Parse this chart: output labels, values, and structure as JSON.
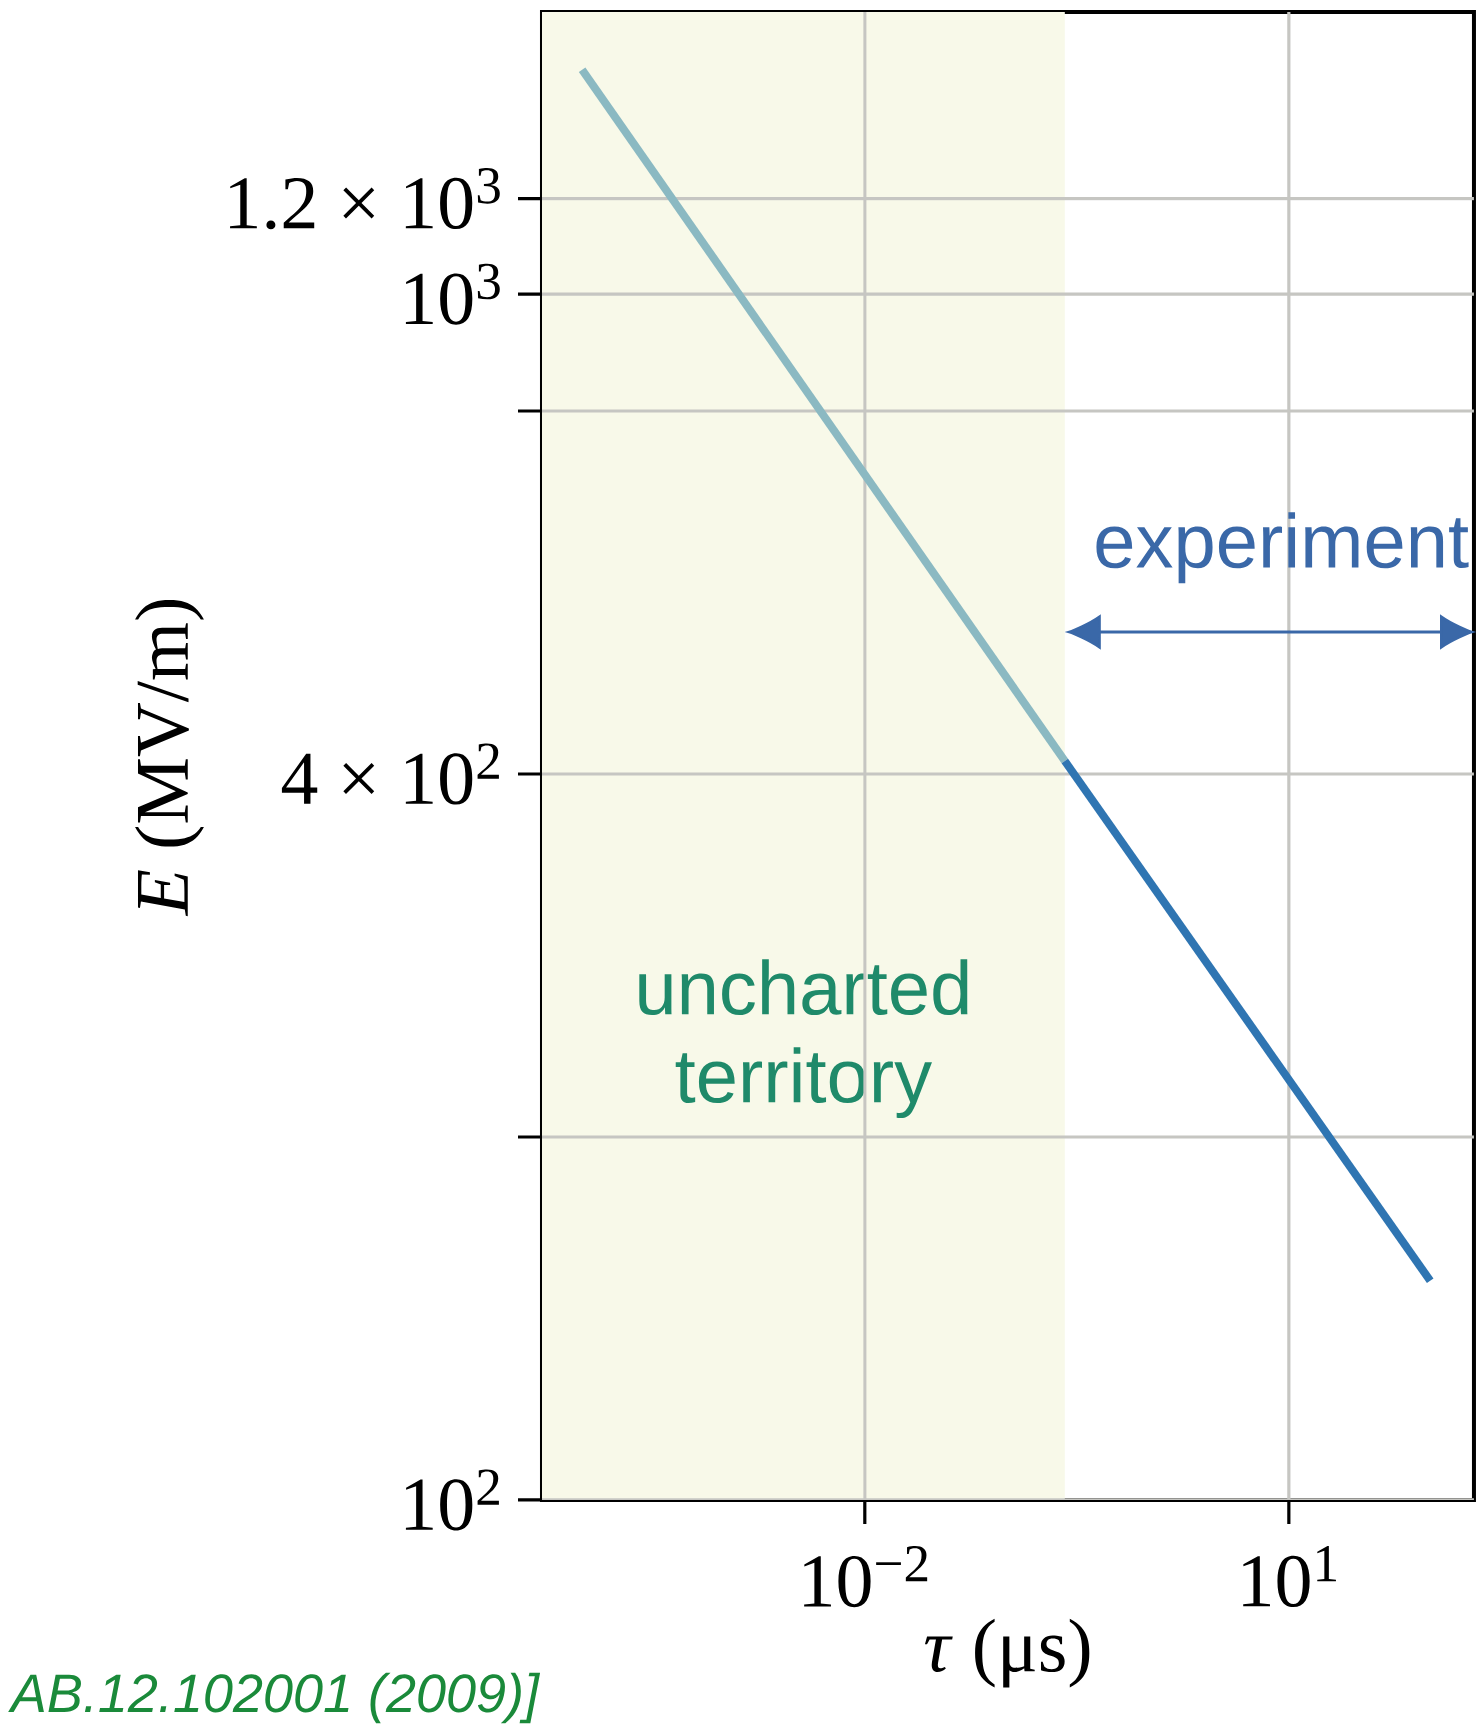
{
  "chart_data": {
    "type": "line",
    "xlabel": "*τ* (μs)",
    "ylabel": "*E* (MV/m)",
    "log": "xy",
    "grid": true,
    "xlim": [
      5.2e-05,
      204
    ],
    "ylim": [
      100,
      1714
    ],
    "xticks": [
      {
        "value": 0.01,
        "label": "10$^{−2}$"
      },
      {
        "value": 10,
        "label": "10$^{1}$"
      }
    ],
    "yticks": [
      {
        "value": 100,
        "label": "10$^{2}$"
      },
      {
        "value": 200,
        "label": null
      },
      {
        "value": 400,
        "label": "4 × 10$^{2}$"
      },
      {
        "value": 800,
        "label": null
      },
      {
        "value": 1000,
        "label": "10$^{3}$"
      },
      {
        "value": 1200,
        "label": "1.2 × 10$^{3}$"
      }
    ],
    "series": [
      {
        "color": "#8bb9c2",
        "x": [
          0.0001,
          0.26
        ],
        "values": [
          1535,
          410
        ]
      },
      {
        "color": "#2f75b2",
        "x": [
          0.26,
          100
        ],
        "values": [
          410,
          152
        ]
      }
    ],
    "bands": [
      {
        "axis": "x",
        "from": 5.2e-05,
        "to": 0.26,
        "label": "uncharted territory",
        "color": "#f8f9e9"
      }
    ],
    "annotations": [
      "experiment",
      "AB.12.102001 (2009)]"
    ]
  }
}
